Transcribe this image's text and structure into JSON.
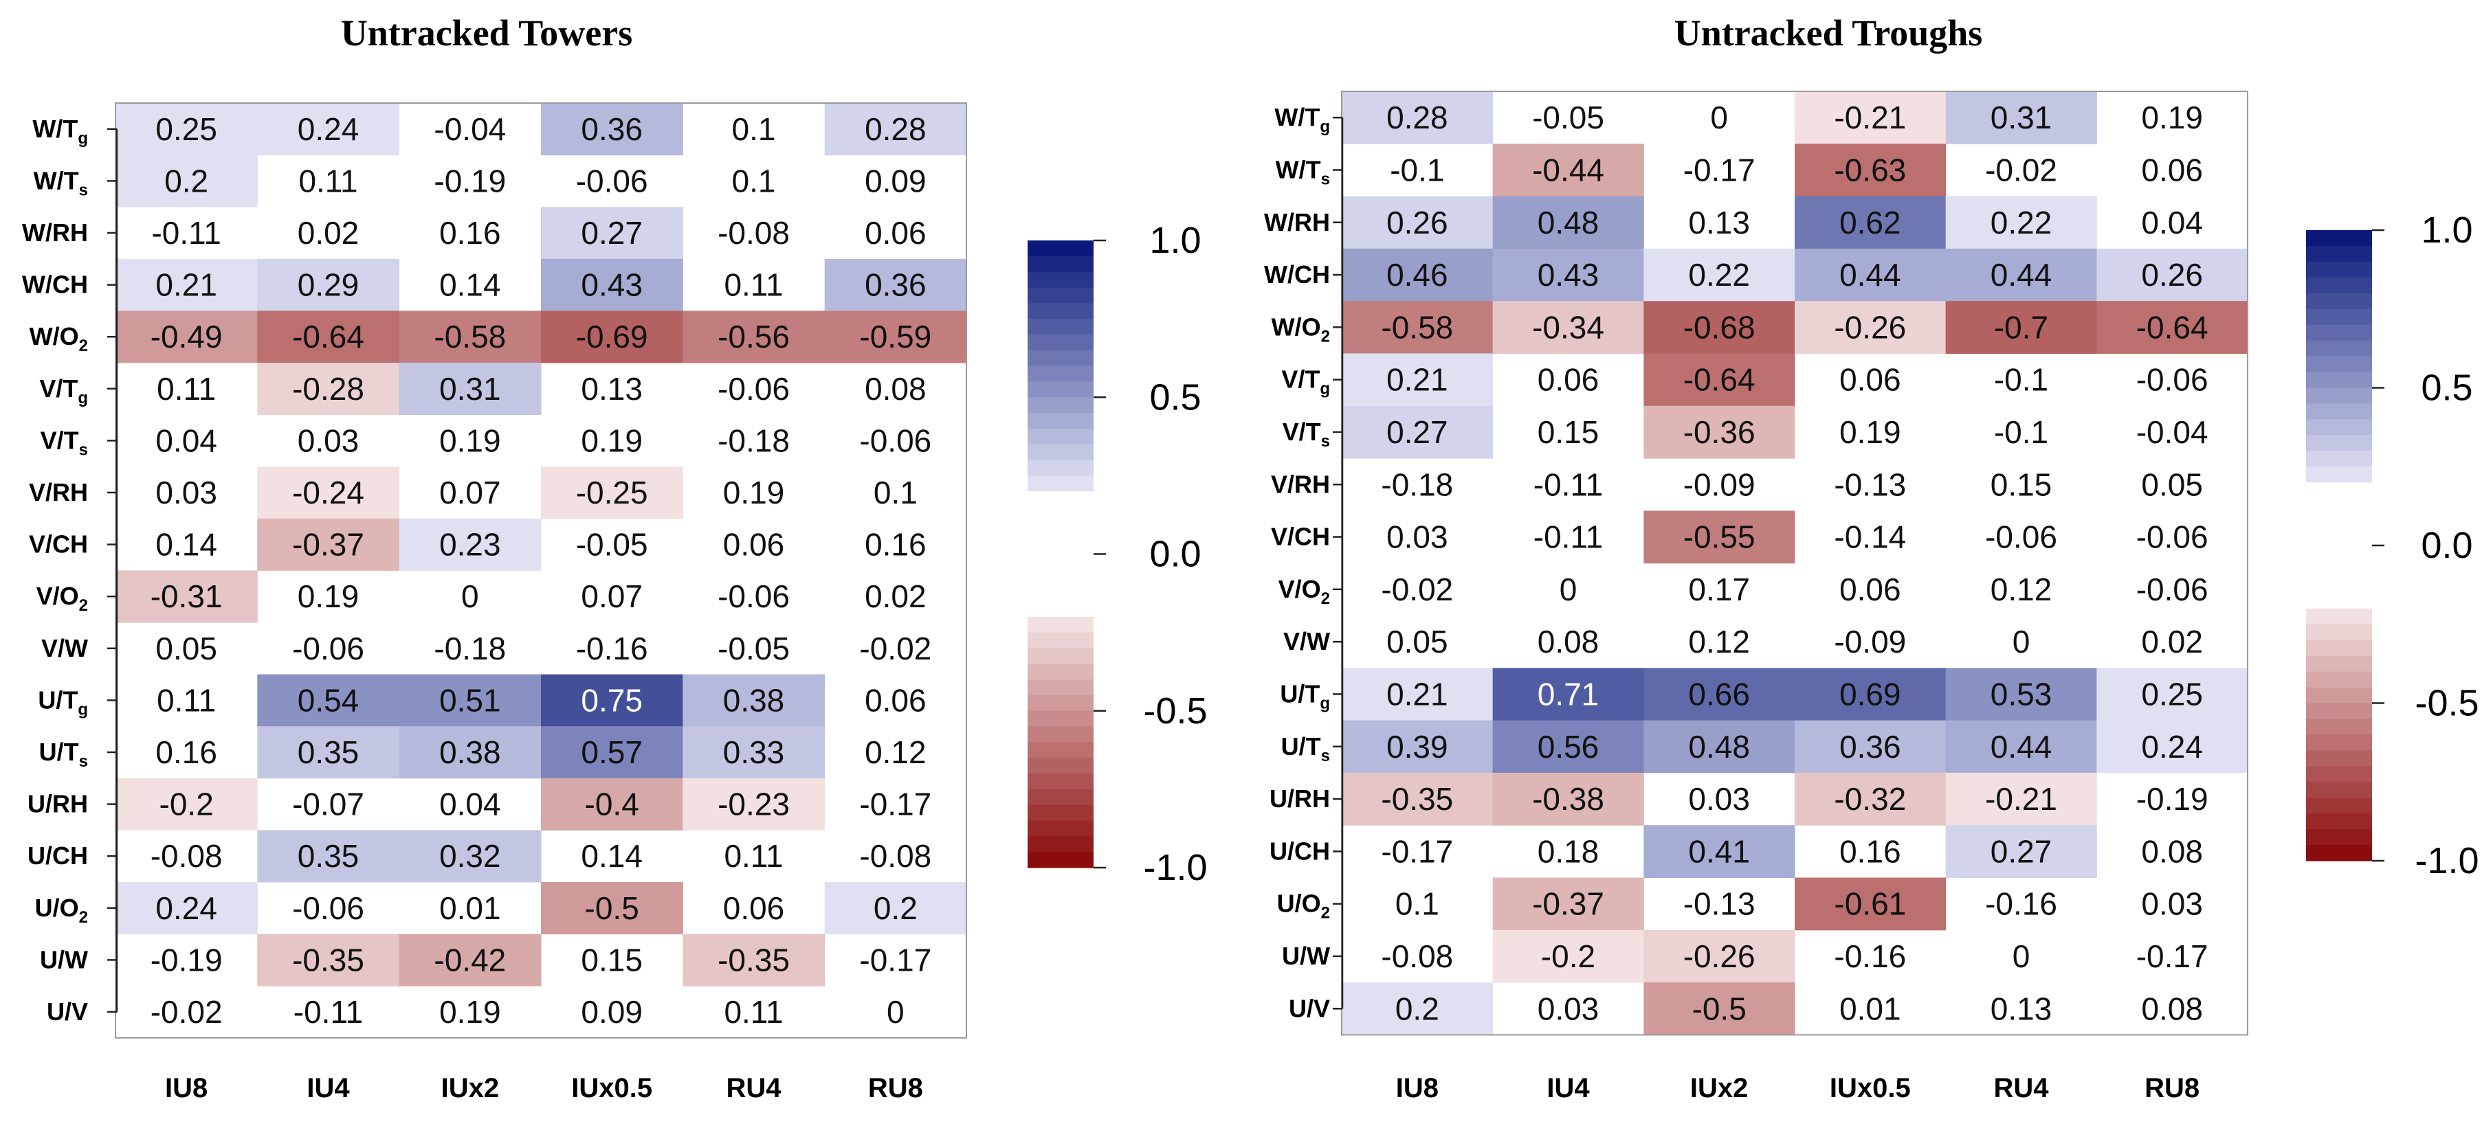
{
  "chart_data": [
    {
      "type": "heatmap",
      "title": "Untracked Towers",
      "columns": [
        "IU8",
        "IU4",
        "IUx2",
        "IUx0.5",
        "RU4",
        "RU8"
      ],
      "rows": [
        {
          "base": "W/T",
          "sub": "g"
        },
        {
          "base": "W/T",
          "sub": "s"
        },
        {
          "base": "W/RH",
          "sub": ""
        },
        {
          "base": "W/CH",
          "sub": ""
        },
        {
          "base": "W/O",
          "sub": "2"
        },
        {
          "base": "V/T",
          "sub": "g"
        },
        {
          "base": "V/T",
          "sub": "s"
        },
        {
          "base": "V/RH",
          "sub": ""
        },
        {
          "base": "V/CH",
          "sub": ""
        },
        {
          "base": "V/O",
          "sub": "2"
        },
        {
          "base": "V/W",
          "sub": ""
        },
        {
          "base": "U/T",
          "sub": "g"
        },
        {
          "base": "U/T",
          "sub": "s"
        },
        {
          "base": "U/RH",
          "sub": ""
        },
        {
          "base": "U/CH",
          "sub": ""
        },
        {
          "base": "U/O",
          "sub": "2"
        },
        {
          "base": "U/W",
          "sub": ""
        },
        {
          "base": "U/V",
          "sub": ""
        }
      ],
      "values": [
        [
          0.25,
          0.24,
          -0.04,
          0.36,
          0.1,
          0.28
        ],
        [
          0.2,
          0.11,
          -0.19,
          -0.06,
          0.1,
          0.09
        ],
        [
          -0.11,
          0.02,
          0.16,
          0.27,
          -0.08,
          0.06
        ],
        [
          0.21,
          0.29,
          0.14,
          0.43,
          0.11,
          0.36
        ],
        [
          -0.49,
          -0.64,
          -0.58,
          -0.69,
          -0.56,
          -0.59
        ],
        [
          0.11,
          -0.28,
          0.31,
          0.13,
          -0.06,
          0.08
        ],
        [
          0.04,
          0.03,
          0.19,
          0.19,
          -0.18,
          -0.06
        ],
        [
          0.03,
          -0.24,
          0.07,
          -0.25,
          0.19,
          0.1
        ],
        [
          0.14,
          -0.37,
          0.23,
          -0.05,
          0.06,
          0.16
        ],
        [
          -0.31,
          0.19,
          0,
          0.07,
          -0.06,
          0.02
        ],
        [
          0.05,
          -0.06,
          -0.18,
          -0.16,
          -0.05,
          -0.02
        ],
        [
          0.11,
          0.54,
          0.51,
          0.75,
          0.38,
          0.06
        ],
        [
          0.16,
          0.35,
          0.38,
          0.57,
          0.33,
          0.12
        ],
        [
          -0.2,
          -0.07,
          0.04,
          -0.4,
          -0.23,
          -0.17
        ],
        [
          -0.08,
          0.35,
          0.32,
          0.14,
          0.11,
          -0.08
        ],
        [
          0.24,
          -0.06,
          0.01,
          -0.5,
          0.06,
          0.2
        ],
        [
          -0.19,
          -0.35,
          -0.42,
          0.15,
          -0.35,
          -0.17
        ],
        [
          -0.02,
          -0.11,
          0.19,
          0.09,
          0.11,
          0
        ]
      ],
      "value_labels": [
        [
          "0.25",
          "0.24",
          "-0.04",
          "0.36",
          "0.1",
          "0.28"
        ],
        [
          "0.2",
          "0.11",
          "-0.19",
          "-0.06",
          "0.1",
          "0.09"
        ],
        [
          "-0.11",
          "0.02",
          "0.16",
          "0.27",
          "-0.08",
          "0.06"
        ],
        [
          "0.21",
          "0.29",
          "0.14",
          "0.43",
          "0.11",
          "0.36"
        ],
        [
          "-0.49",
          "-0.64",
          "-0.58",
          "-0.69",
          "-0.56",
          "-0.59"
        ],
        [
          "0.11",
          "-0.28",
          "0.31",
          "0.13",
          "-0.06",
          "0.08"
        ],
        [
          "0.04",
          "0.03",
          "0.19",
          "0.19",
          "-0.18",
          "-0.06"
        ],
        [
          "0.03",
          "-0.24",
          "0.07",
          "-0.25",
          "0.19",
          "0.1"
        ],
        [
          "0.14",
          "-0.37",
          "0.23",
          "-0.05",
          "0.06",
          "0.16"
        ],
        [
          "-0.31",
          "0.19",
          "0",
          "0.07",
          "-0.06",
          "0.02"
        ],
        [
          "0.05",
          "-0.06",
          "-0.18",
          "-0.16",
          "-0.05",
          "-0.02"
        ],
        [
          "0.11",
          "0.54",
          "0.51",
          "0.75",
          "0.38",
          "0.06"
        ],
        [
          "0.16",
          "0.35",
          "0.38",
          "0.57",
          "0.33",
          "0.12"
        ],
        [
          "-0.2",
          "-0.07",
          "0.04",
          "-0.4",
          "-0.23",
          "-0.17"
        ],
        [
          "-0.08",
          "0.35",
          "0.32",
          "0.14",
          "0.11",
          "-0.08"
        ],
        [
          "0.24",
          "-0.06",
          "0.01",
          "-0.5",
          "0.06",
          "0.2"
        ],
        [
          "-0.19",
          "-0.35",
          "-0.42",
          "0.15",
          "-0.35",
          "-0.17"
        ],
        [
          "-0.02",
          "-0.11",
          "0.19",
          "0.09",
          "0.11",
          "0"
        ]
      ]
    },
    {
      "type": "heatmap",
      "title": "Untracked Troughs",
      "columns": [
        "IU8",
        "IU4",
        "IUx2",
        "IUx0.5",
        "RU4",
        "RU8"
      ],
      "rows": [
        {
          "base": "W/T",
          "sub": "g"
        },
        {
          "base": "W/T",
          "sub": "s"
        },
        {
          "base": "W/RH",
          "sub": ""
        },
        {
          "base": "W/CH",
          "sub": ""
        },
        {
          "base": "W/O",
          "sub": "2"
        },
        {
          "base": "V/T",
          "sub": "g"
        },
        {
          "base": "V/T",
          "sub": "s"
        },
        {
          "base": "V/RH",
          "sub": ""
        },
        {
          "base": "V/CH",
          "sub": ""
        },
        {
          "base": "V/O",
          "sub": "2"
        },
        {
          "base": "V/W",
          "sub": ""
        },
        {
          "base": "U/T",
          "sub": "g"
        },
        {
          "base": "U/T",
          "sub": "s"
        },
        {
          "base": "U/RH",
          "sub": ""
        },
        {
          "base": "U/CH",
          "sub": ""
        },
        {
          "base": "U/O",
          "sub": "2"
        },
        {
          "base": "U/W",
          "sub": ""
        },
        {
          "base": "U/V",
          "sub": ""
        }
      ],
      "values": [
        [
          0.28,
          -0.05,
          0,
          -0.21,
          0.31,
          0.19
        ],
        [
          -0.1,
          -0.44,
          -0.17,
          -0.63,
          -0.02,
          0.06
        ],
        [
          0.26,
          0.48,
          0.13,
          0.62,
          0.22,
          0.04
        ],
        [
          0.46,
          0.43,
          0.22,
          0.44,
          0.44,
          0.26
        ],
        [
          -0.58,
          -0.34,
          -0.68,
          -0.26,
          -0.7,
          -0.64
        ],
        [
          0.21,
          0.06,
          -0.64,
          0.06,
          -0.1,
          -0.06
        ],
        [
          0.27,
          0.15,
          -0.36,
          0.19,
          -0.1,
          -0.04
        ],
        [
          -0.18,
          -0.11,
          -0.09,
          -0.13,
          0.15,
          0.05
        ],
        [
          0.03,
          -0.11,
          -0.55,
          -0.14,
          -0.06,
          -0.06
        ],
        [
          -0.02,
          0,
          0.17,
          0.06,
          0.12,
          -0.06
        ],
        [
          0.05,
          0.08,
          0.12,
          -0.09,
          0,
          0.02
        ],
        [
          0.21,
          0.71,
          0.66,
          0.69,
          0.53,
          0.25
        ],
        [
          0.39,
          0.56,
          0.48,
          0.36,
          0.44,
          0.24
        ],
        [
          -0.35,
          -0.38,
          0.03,
          -0.32,
          -0.21,
          -0.19
        ],
        [
          -0.17,
          0.18,
          0.41,
          0.16,
          0.27,
          0.08
        ],
        [
          0.1,
          -0.37,
          -0.13,
          -0.61,
          -0.16,
          0.03
        ],
        [
          -0.08,
          -0.2,
          -0.26,
          -0.16,
          0,
          -0.17
        ],
        [
          0.2,
          0.03,
          -0.5,
          0.01,
          0.13,
          0.08
        ]
      ],
      "value_labels": [
        [
          "0.28",
          "-0.05",
          "0",
          "-0.21",
          "0.31",
          "0.19"
        ],
        [
          "-0.1",
          "-0.44",
          "-0.17",
          "-0.63",
          "-0.02",
          "0.06"
        ],
        [
          "0.26",
          "0.48",
          "0.13",
          "0.62",
          "0.22",
          "0.04"
        ],
        [
          "0.46",
          "0.43",
          "0.22",
          "0.44",
          "0.44",
          "0.26"
        ],
        [
          "-0.58",
          "-0.34",
          "-0.68",
          "-0.26",
          "-0.7",
          "-0.64"
        ],
        [
          "0.21",
          "0.06",
          "-0.64",
          "0.06",
          "-0.1",
          "-0.06"
        ],
        [
          "0.27",
          "0.15",
          "-0.36",
          "0.19",
          "-0.1",
          "-0.04"
        ],
        [
          "-0.18",
          "-0.11",
          "-0.09",
          "-0.13",
          "0.15",
          "0.05"
        ],
        [
          "0.03",
          "-0.11",
          "-0.55",
          "-0.14",
          "-0.06",
          "-0.06"
        ],
        [
          "-0.02",
          "0",
          "0.17",
          "0.06",
          "0.12",
          "-0.06"
        ],
        [
          "0.05",
          "0.08",
          "0.12",
          "-0.09",
          "0",
          "0.02"
        ],
        [
          "0.21",
          "0.71",
          "0.66",
          "0.69",
          "0.53",
          "0.25"
        ],
        [
          "0.39",
          "0.56",
          "0.48",
          "0.36",
          "0.44",
          "0.24"
        ],
        [
          "-0.35",
          "-0.38",
          "0.03",
          "-0.32",
          "-0.21",
          "-0.19"
        ],
        [
          "-0.17",
          "0.18",
          "0.41",
          "0.16",
          "0.27",
          "0.08"
        ],
        [
          "0.1",
          "-0.37",
          "-0.13",
          "-0.61",
          "-0.16",
          "0.03"
        ],
        [
          "-0.08",
          "-0.2",
          "-0.26",
          "-0.16",
          "0",
          "-0.17"
        ],
        [
          "0.2",
          "0.03",
          "-0.5",
          "0.01",
          "0.13",
          "0.08"
        ]
      ]
    }
  ],
  "colorbar": {
    "range": [
      -1.0,
      1.0
    ],
    "ticks": [
      1.0,
      0.5,
      0.0,
      -0.5,
      -1.0
    ],
    "tick_labels": [
      "1.0",
      "0.5",
      "0.0",
      "-0.5",
      "-1.0"
    ],
    "white_band": [
      -0.2,
      0.2
    ],
    "colors": {
      "positive_max": "#0b1a7a",
      "positive_min": "#dfe1f3",
      "negative_min": "#f3e1e1",
      "negative_max": "#8a0c0c",
      "neutral": "#ffffff"
    }
  }
}
